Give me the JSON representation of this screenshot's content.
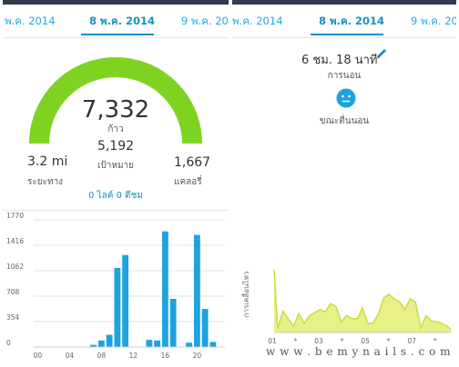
{
  "colors": {
    "accent": "#1a8fc3",
    "gauge_green": "#7ed321",
    "bar_blue": "#1ea3e0",
    "sleep_fill": "#e4f07a",
    "sleep_line": "#c9d93a",
    "topbar": "#2f3d4f"
  },
  "left": {
    "dates": {
      "prev": "พ.ค. 2014",
      "current": "8 พ.ค. 2014",
      "next": "9 พ.ค. 2014"
    },
    "steps": {
      "value": "7,332",
      "unit": "ก้าว",
      "progress_fraction": 1.0
    },
    "goal": {
      "value": "5,192",
      "label": "เป้าหมาย"
    },
    "distance": {
      "value": "3.2 mi",
      "label": "ระยะทาง"
    },
    "calories": {
      "value": "1,667",
      "label": "แคลอรี่"
    },
    "social": "0 ไลค์ 0 ดีชม"
  },
  "right": {
    "dates": {
      "prev": "พ.ค. 2014",
      "current": "8 พ.ค. 2014",
      "next": "9 พ.ค. 2014"
    },
    "sleep_duration": "6 ชม. 18 นาที",
    "sleep_label": "การนอน",
    "awake_label": "ขณะตื่นนอน",
    "icons": {
      "edit": "pencil-icon",
      "mood": "neutral-face-icon"
    },
    "watermark": "w w w . b e m y n a i l s . c o m"
  },
  "chart_data": [
    {
      "type": "bar",
      "title": "",
      "xlabel": "",
      "ylabel": "",
      "y_ticks": [
        "0",
        "354",
        "708",
        "1062",
        "1416",
        "1770"
      ],
      "ylim": [
        0,
        1770
      ],
      "x_ticks": [
        "00",
        "04",
        "08",
        "12",
        "16",
        "20"
      ],
      "x": [
        7,
        8,
        9,
        10,
        11,
        14,
        15,
        16,
        17,
        19,
        20,
        21,
        22
      ],
      "values": [
        30,
        90,
        170,
        1100,
        1280,
        100,
        90,
        1610,
        670,
        60,
        1560,
        530,
        70
      ],
      "grid": true
    },
    {
      "type": "area",
      "title": "",
      "xlabel": "",
      "ylabel": "การเคลื่อนไหว",
      "x_ticks": [
        "01",
        "*",
        "03",
        "*",
        "05",
        "*",
        "07",
        "*"
      ],
      "x_range": [
        0,
        100
      ],
      "ylim": [
        0,
        100
      ],
      "x": [
        0,
        2,
        5,
        8,
        11,
        14,
        17,
        20,
        23,
        26,
        29,
        32,
        35,
        38,
        41,
        44,
        47,
        50,
        53,
        56,
        59,
        62,
        65,
        68,
        71,
        74,
        77,
        80,
        83,
        86,
        89,
        92,
        95,
        98,
        100
      ],
      "values": [
        83,
        5,
        28,
        18,
        8,
        25,
        12,
        22,
        26,
        30,
        27,
        38,
        34,
        14,
        22,
        18,
        18,
        32,
        12,
        12,
        24,
        45,
        50,
        44,
        40,
        30,
        44,
        40,
        6,
        22,
        15,
        14,
        12,
        8,
        4
      ],
      "grid": false
    }
  ]
}
